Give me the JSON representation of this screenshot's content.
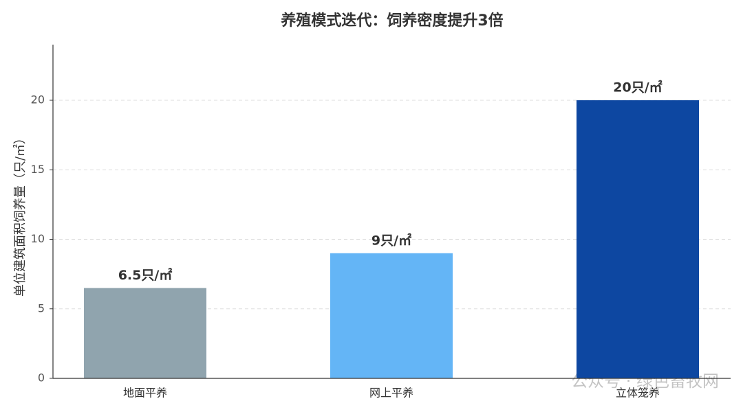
{
  "chart_data": {
    "type": "bar",
    "title": "养殖模式迭代：饲养密度提升3倍",
    "y_label": "单位建筑面积饲养量（只/㎡）",
    "categories": [
      "地面平养",
      "网上平养",
      "立体笼养"
    ],
    "values": [
      6.5,
      9,
      20
    ],
    "value_labels": [
      "6.5只/㎡",
      "9只/㎡",
      "20只/㎡"
    ],
    "colors": [
      "#90a4ae",
      "#64b5f6",
      "#0d47a1"
    ],
    "ylim": [
      0,
      24
    ],
    "yticks": [
      0,
      5,
      10,
      15,
      20
    ],
    "grid": true
  },
  "watermark": "公众号 · 绿色畜牧网"
}
